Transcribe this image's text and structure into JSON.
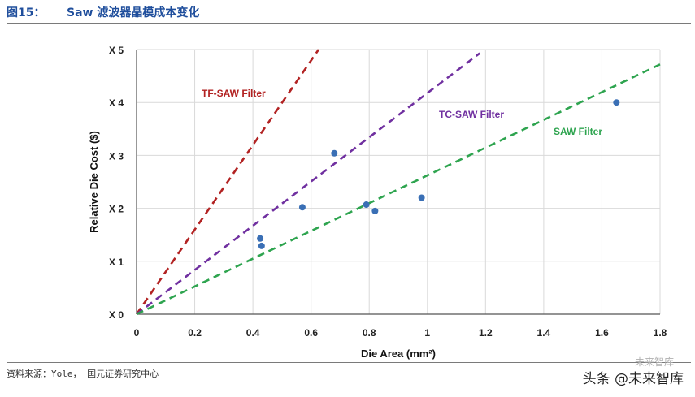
{
  "header": {
    "figure_number": "图15：",
    "title": "Saw 滤波器晶模成本变化"
  },
  "footer": {
    "source": "资料来源：Yole， 国元证券研究中心",
    "watermark": "头条 @未来智库",
    "watermark_badge": "未来智库"
  },
  "chart_data": {
    "type": "scatter",
    "title": "Saw 滤波器晶模成本变化",
    "xlabel": "Die Area (mm²)",
    "ylabel": "Relative Die Cost ($)",
    "xlim": [
      0,
      1.8
    ],
    "ylim": [
      0,
      5
    ],
    "x_ticks": [
      0,
      0.2,
      0.4,
      0.6,
      0.8,
      1.0,
      1.2,
      1.4,
      1.6,
      1.8
    ],
    "x_tick_labels": [
      "0",
      "0.2",
      "0.4",
      "0.6",
      "0.8",
      "1",
      "1.2",
      "1.4",
      "1.6",
      "1.8"
    ],
    "y_ticks": [
      0,
      1,
      2,
      3,
      4,
      5
    ],
    "y_tick_labels": [
      "X 0",
      "X 1",
      "X 2",
      "X 3",
      "X 4",
      "X 5"
    ],
    "grid": true,
    "series": [
      {
        "name": "TF-SAW Filter",
        "kind": "dashed-line",
        "color": "#b22222",
        "x": [
          0,
          0.626
        ],
        "y": [
          0,
          5
        ]
      },
      {
        "name": "TC-SAW Filter",
        "kind": "dashed-line",
        "color": "#7030a0",
        "x": [
          0,
          1.18
        ],
        "y": [
          0,
          4.93
        ]
      },
      {
        "name": "SAW Filter",
        "kind": "dashed-line",
        "color": "#2ea44f",
        "x": [
          0,
          1.8
        ],
        "y": [
          0,
          4.72
        ]
      }
    ],
    "points": {
      "color": "#3a6fb5",
      "x": [
        0.425,
        0.43,
        0.57,
        0.68,
        0.79,
        0.82,
        0.98,
        1.65
      ],
      "y": [
        1.43,
        1.29,
        2.02,
        3.04,
        2.07,
        1.95,
        2.2,
        4.0
      ]
    }
  }
}
